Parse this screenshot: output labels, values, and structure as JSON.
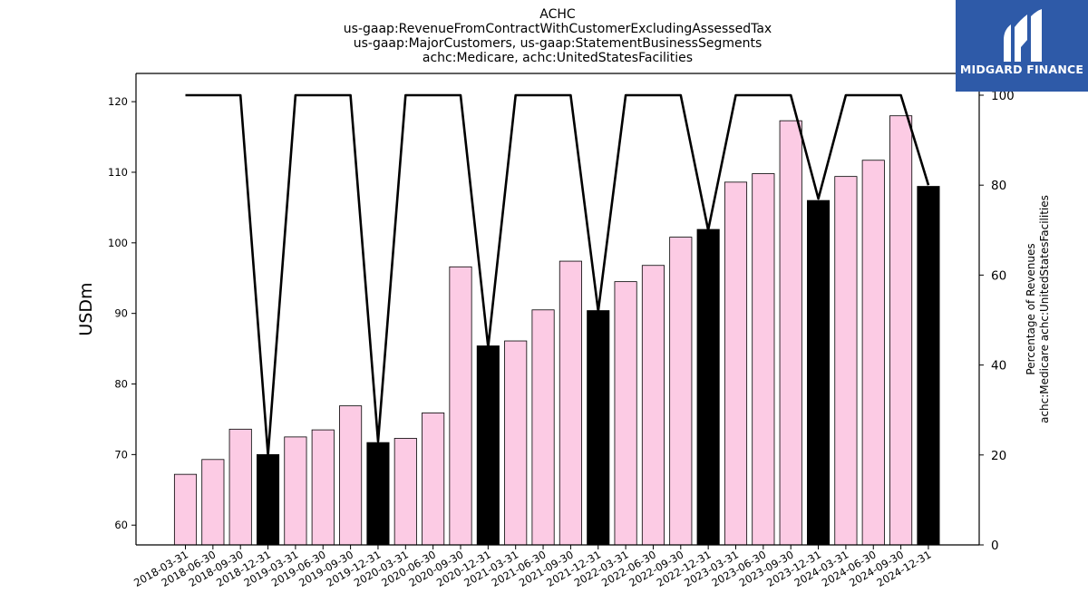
{
  "chart_data": {
    "type": "bar",
    "title_lines": [
      "ACHC",
      "us-gaap:RevenueFromContractWithCustomerExcludingAssessedTax",
      "us-gaap:MajorCustomers, us-gaap:StatementBusinessSegments",
      "achc:Medicare, achc:UnitedStatesFacilities"
    ],
    "ylabel": "USDm",
    "y2label_lines": [
      "Percentage of Revenues",
      "achc:Medicare achc:UnitedStatesFacilities"
    ],
    "ylim": [
      57.2,
      124
    ],
    "y2lim": [
      0,
      100
    ],
    "yticks": [
      60,
      70,
      80,
      90,
      100,
      110,
      120
    ],
    "y2ticks": [
      0,
      20,
      40,
      60,
      80,
      100
    ],
    "categories": [
      "2018-03-31",
      "2018-06-30",
      "2018-09-30",
      "2018-12-31",
      "2019-03-31",
      "2019-06-30",
      "2019-09-30",
      "2019-12-31",
      "2020-03-31",
      "2020-06-30",
      "2020-09-30",
      "2020-12-31",
      "2021-03-31",
      "2021-06-30",
      "2021-09-30",
      "2021-12-31",
      "2022-03-31",
      "2022-06-30",
      "2022-09-30",
      "2022-12-31",
      "2023-03-31",
      "2023-06-30",
      "2023-09-30",
      "2023-12-31",
      "2024-03-31",
      "2024-06-30",
      "2024-09-30",
      "2024-12-31"
    ],
    "series": [
      {
        "type": "bar",
        "values": [
          67.2,
          69.3,
          73.6,
          70.0,
          72.5,
          73.5,
          76.9,
          71.7,
          72.3,
          75.9,
          96.6,
          85.4,
          86.1,
          90.5,
          97.4,
          90.4,
          94.5,
          96.8,
          100.8,
          101.9,
          108.6,
          109.8,
          117.3,
          106.0,
          109.4,
          111.7,
          118.0,
          108.0
        ],
        "colors": {
          "quarter": "#fccbe4",
          "year_end": "#000000"
        }
      },
      {
        "type": "line",
        "axis": "right",
        "values": [
          100,
          100,
          100,
          20,
          100,
          100,
          100,
          23,
          100,
          100,
          100,
          44,
          100,
          100,
          100,
          52,
          100,
          100,
          100,
          70,
          100,
          100,
          100,
          77,
          100,
          100,
          100,
          80
        ],
        "color": "#000000"
      }
    ],
    "grid": false
  },
  "watermark": {
    "brand": "MIDGARD FINANCE",
    "bg_color": "#2e5aa8"
  }
}
